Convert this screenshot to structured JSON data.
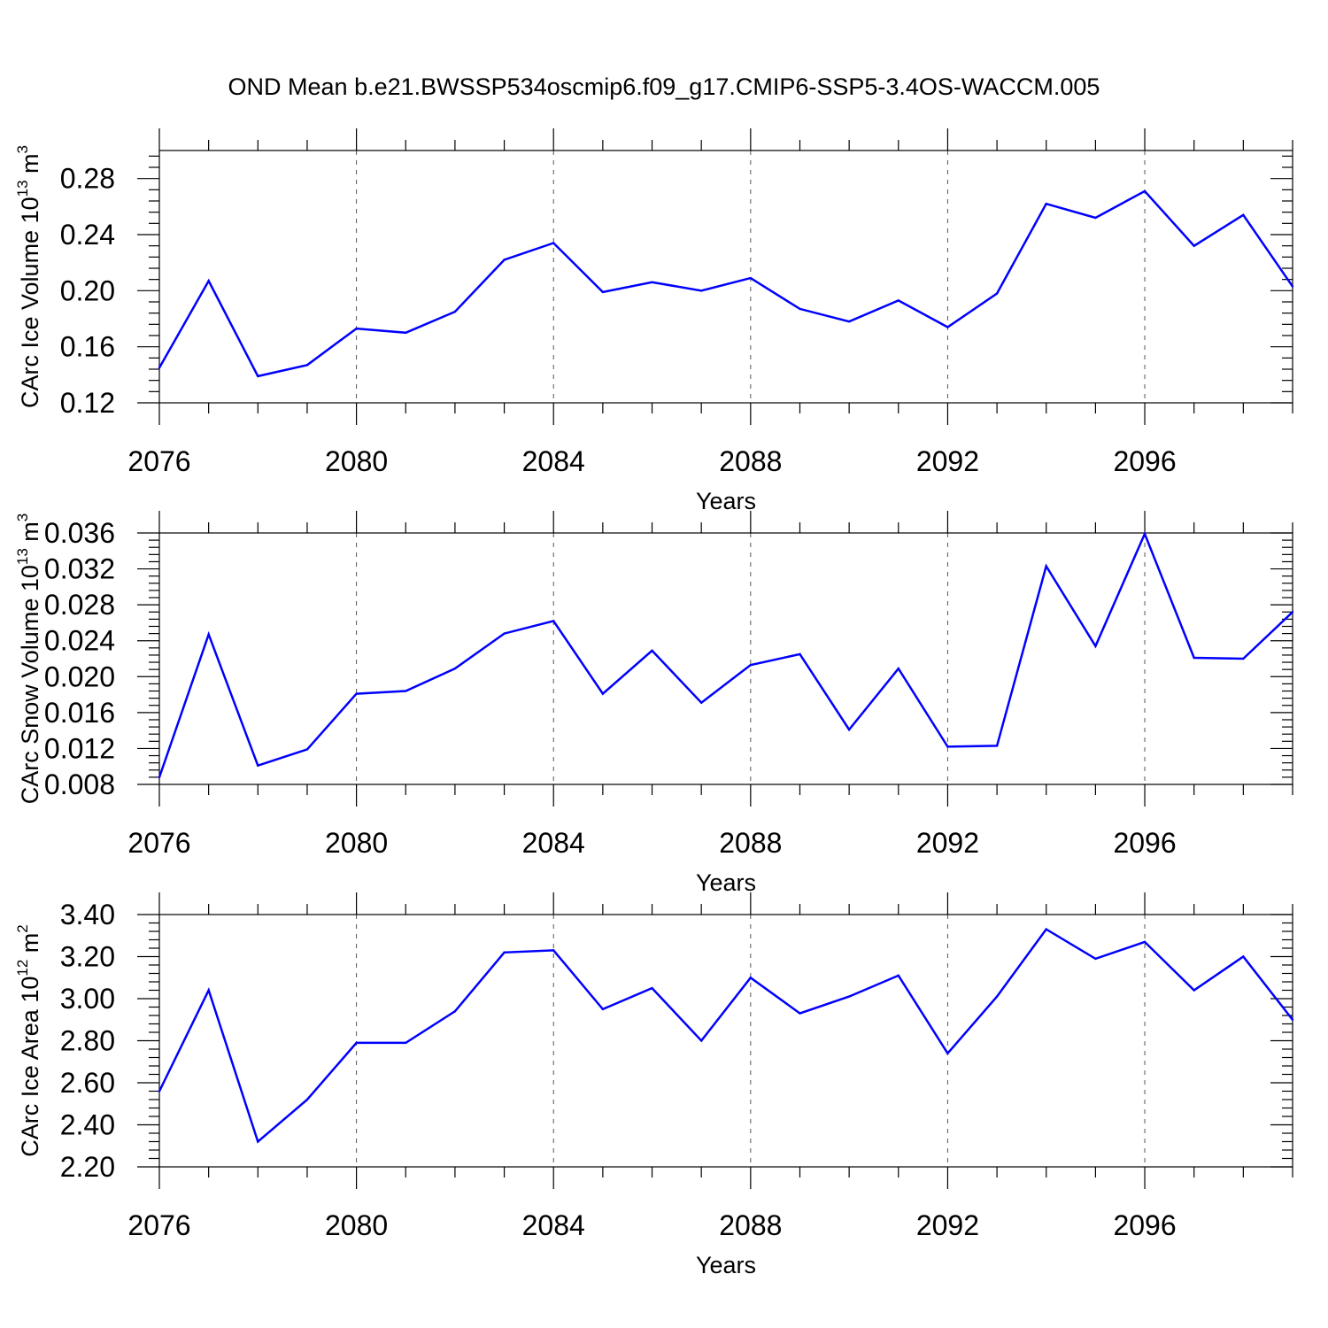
{
  "figure": {
    "title": "OND Mean b.e21.BWSSP534oscmip6.f09_g17.CMIP6-SSP5-3.4OS-WACCM.005"
  },
  "style": {
    "line_color": "#0000ff",
    "grid_color": "#555555",
    "axis_color": "#000000"
  },
  "chart_data": [
    {
      "type": "line",
      "name": "ice-volume",
      "xlabel": "Years",
      "ylabel_main": "CArc Ice Volume 10",
      "ylabel_exp": "13",
      "ylabel_unit": " m",
      "ylabel_unit_exp": "3",
      "xlim": [
        2076,
        2099
      ],
      "ylim": [
        0.12,
        0.3
      ],
      "yticks": [
        0.12,
        0.16,
        0.2,
        0.24,
        0.28
      ],
      "ytick_labels": [
        "0.12",
        "0.16",
        "0.20",
        "0.24",
        "0.28"
      ],
      "xticks": [
        2076,
        2080,
        2084,
        2088,
        2092,
        2096
      ],
      "xtick_labels": [
        "2076",
        "2080",
        "2084",
        "2088",
        "2092",
        "2096"
      ],
      "x": [
        2076,
        2077,
        2078,
        2079,
        2080,
        2081,
        2082,
        2083,
        2084,
        2085,
        2086,
        2087,
        2088,
        2089,
        2090,
        2091,
        2092,
        2093,
        2094,
        2095,
        2096,
        2097,
        2098,
        2099
      ],
      "values": [
        0.145,
        0.207,
        0.139,
        0.147,
        0.173,
        0.17,
        0.185,
        0.222,
        0.234,
        0.199,
        0.206,
        0.2,
        0.209,
        0.187,
        0.178,
        0.193,
        0.174,
        0.198,
        0.262,
        0.252,
        0.271,
        0.232,
        0.254,
        0.203
      ]
    },
    {
      "type": "line",
      "name": "snow-volume",
      "xlabel": "Years",
      "ylabel_main": "CArc Snow Volume 10",
      "ylabel_exp": "13",
      "ylabel_unit": " m",
      "ylabel_unit_exp": "3",
      "xlim": [
        2076,
        2099
      ],
      "ylim": [
        0.008,
        0.036
      ],
      "yticks": [
        0.008,
        0.012,
        0.016,
        0.02,
        0.024,
        0.028,
        0.032,
        0.036
      ],
      "ytick_labels": [
        "0.008",
        "0.012",
        "0.016",
        "0.020",
        "0.024",
        "0.028",
        "0.032",
        "0.036"
      ],
      "xticks": [
        2076,
        2080,
        2084,
        2088,
        2092,
        2096
      ],
      "xtick_labels": [
        "2076",
        "2080",
        "2084",
        "2088",
        "2092",
        "2096"
      ],
      "x": [
        2076,
        2077,
        2078,
        2079,
        2080,
        2081,
        2082,
        2083,
        2084,
        2085,
        2086,
        2087,
        2088,
        2089,
        2090,
        2091,
        2092,
        2093,
        2094,
        2095,
        2096,
        2097,
        2098,
        2099
      ],
      "values": [
        0.0088,
        0.0247,
        0.0101,
        0.0119,
        0.0181,
        0.0184,
        0.0209,
        0.0248,
        0.0262,
        0.0181,
        0.0229,
        0.0171,
        0.0213,
        0.0225,
        0.0141,
        0.0209,
        0.0122,
        0.0123,
        0.0323,
        0.0234,
        0.0359,
        0.0221,
        0.022,
        0.0272
      ]
    },
    {
      "type": "line",
      "name": "ice-area",
      "xlabel": "Years",
      "ylabel_main": "CArc Ice Area 10",
      "ylabel_exp": "12",
      "ylabel_unit": " m",
      "ylabel_unit_exp": "2",
      "xlim": [
        2076,
        2099
      ],
      "ylim": [
        2.2,
        3.4
      ],
      "yticks": [
        2.2,
        2.4,
        2.6,
        2.8,
        3.0,
        3.2,
        3.4
      ],
      "ytick_labels": [
        "2.20",
        "2.40",
        "2.60",
        "2.80",
        "3.00",
        "3.20",
        "3.40"
      ],
      "xticks": [
        2076,
        2080,
        2084,
        2088,
        2092,
        2096
      ],
      "xtick_labels": [
        "2076",
        "2080",
        "2084",
        "2088",
        "2092",
        "2096"
      ],
      "x": [
        2076,
        2077,
        2078,
        2079,
        2080,
        2081,
        2082,
        2083,
        2084,
        2085,
        2086,
        2087,
        2088,
        2089,
        2090,
        2091,
        2092,
        2093,
        2094,
        2095,
        2096,
        2097,
        2098,
        2099
      ],
      "values": [
        2.56,
        3.04,
        2.32,
        2.52,
        2.79,
        2.79,
        2.94,
        3.22,
        3.23,
        2.95,
        3.05,
        2.8,
        3.1,
        2.93,
        3.01,
        3.11,
        2.74,
        3.01,
        3.33,
        3.19,
        3.27,
        3.04,
        3.2,
        2.9
      ]
    }
  ]
}
